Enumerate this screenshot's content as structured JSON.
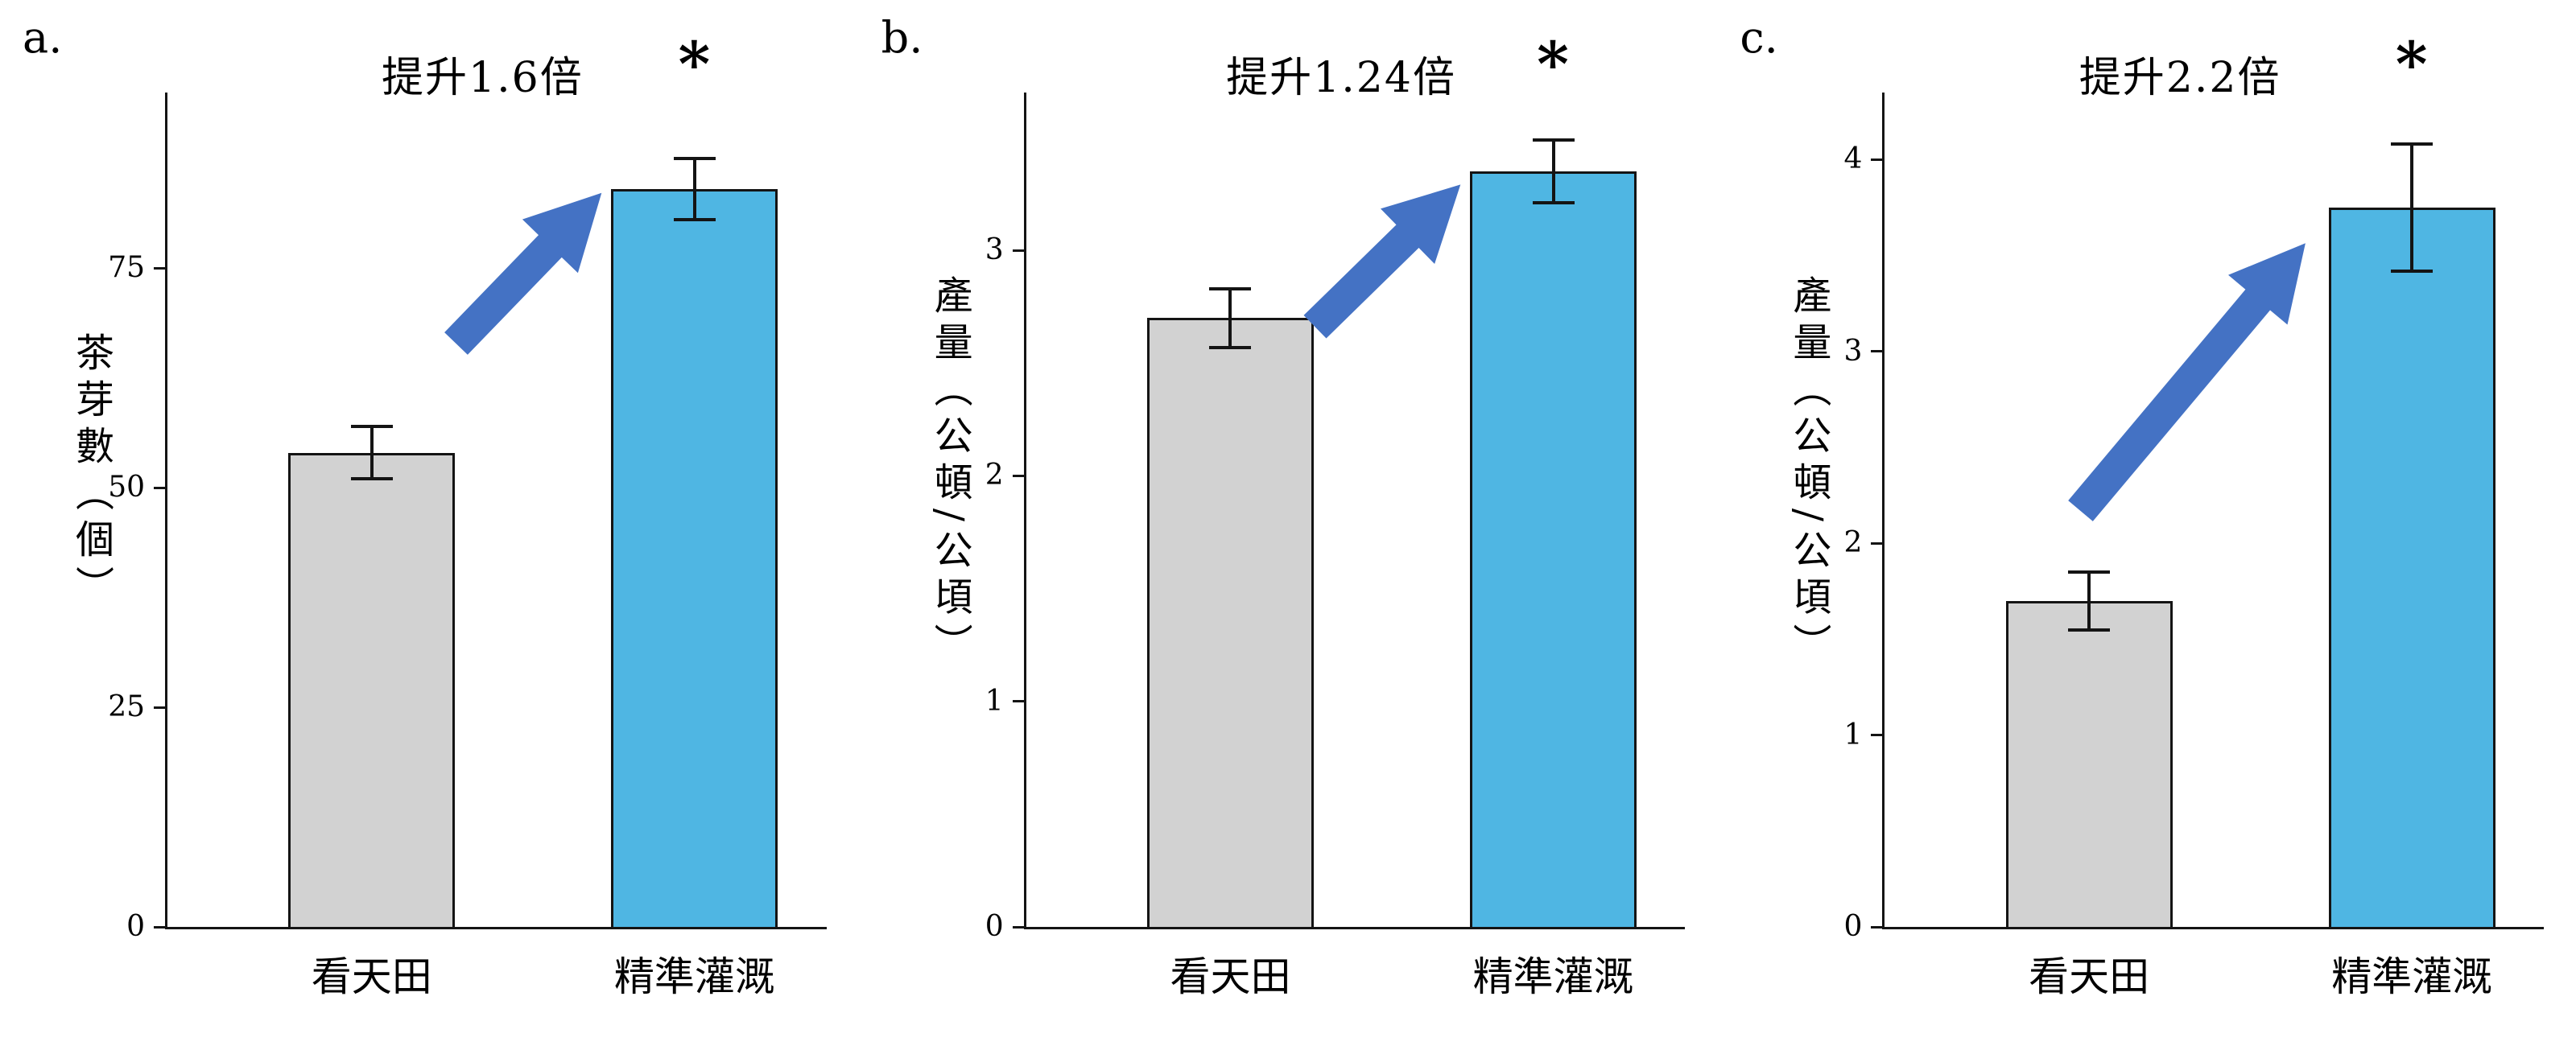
{
  "figure": {
    "background": "#ffffff",
    "text_color": "#000000",
    "axis_color": "#141414",
    "bar_border_color": "#141414",
    "control_bar_color": "#d2d2d2",
    "treatment_bar_color": "#4fb6e3",
    "arrow_color": "#4472c4"
  },
  "chart_data": [
    {
      "type": "bar",
      "panel_label": "a.",
      "ylabel": "茶芽數（個）",
      "xlabel": "",
      "categories": [
        "看天田",
        "精準灌溉"
      ],
      "values": [
        54,
        84
      ],
      "errors": [
        3,
        3.5
      ],
      "yticks": [
        0,
        25,
        50,
        75
      ],
      "ylim": [
        0,
        95
      ],
      "grid": false,
      "legend": false,
      "annotation": "提升1.6倍",
      "annotation_x": 0.48,
      "significance_label": "*",
      "significance_on": "精準灌溉",
      "arrow": {
        "from": [
          0.44,
          0.7
        ],
        "to": [
          0.66,
          0.88
        ]
      }
    },
    {
      "type": "bar",
      "panel_label": "b.",
      "ylabel": "產量（公頓/公頃）",
      "xlabel": "",
      "categories": [
        "看天田",
        "精準灌溉"
      ],
      "values": [
        2.7,
        3.35
      ],
      "errors": [
        0.13,
        0.14
      ],
      "yticks": [
        0,
        1,
        2,
        3
      ],
      "ylim": [
        0,
        3.7
      ],
      "grid": false,
      "legend": false,
      "annotation": "提升1.24倍",
      "annotation_x": 0.48,
      "significance_label": "*",
      "significance_on": "精準灌溉",
      "arrow": {
        "from": [
          0.44,
          0.72
        ],
        "to": [
          0.66,
          0.89
        ]
      }
    },
    {
      "type": "bar",
      "panel_label": "c.",
      "ylabel": "產量（公頓/公頃）",
      "xlabel": "",
      "categories": [
        "看天田",
        "精準灌溉"
      ],
      "values": [
        1.7,
        3.75
      ],
      "errors": [
        0.15,
        0.33
      ],
      "yticks": [
        0,
        1,
        2,
        3,
        4
      ],
      "ylim": [
        0,
        4.35
      ],
      "grid": false,
      "legend": false,
      "annotation": "提升2.2倍",
      "annotation_x": 0.45,
      "significance_label": "*",
      "significance_on": "精準灌溉",
      "arrow": {
        "from": [
          0.3,
          0.5
        ],
        "to": [
          0.64,
          0.82
        ]
      }
    }
  ]
}
